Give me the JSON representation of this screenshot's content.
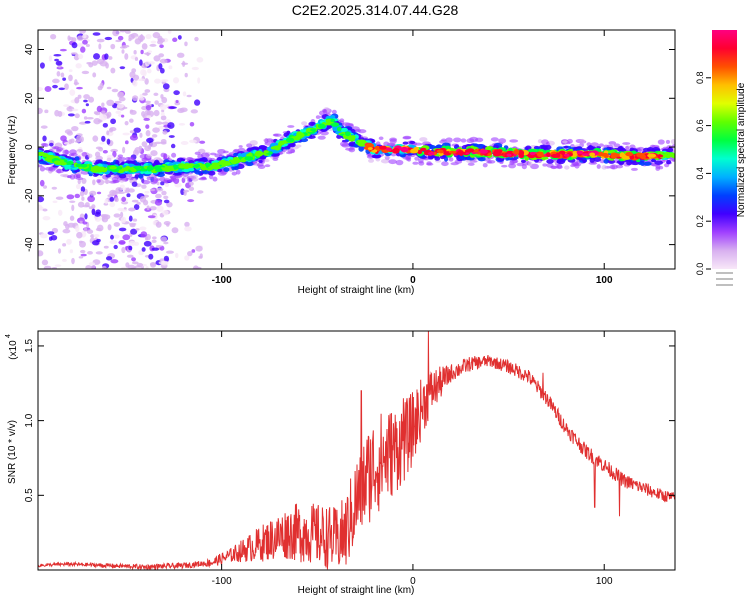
{
  "title": "C2E2.2025.314.07.44.G28",
  "chart_data": [
    {
      "type": "heatmap",
      "xlabel": "Height of straight line (km)",
      "ylabel": "Frequency (Hz)",
      "xlim": [
        -196,
        137
      ],
      "ylim": [
        -50,
        48
      ],
      "xticks": [
        -100,
        0,
        100
      ],
      "xtick_labels": [
        "-100",
        "0",
        "100"
      ],
      "yticks": [
        -40,
        -20,
        0,
        20,
        40
      ],
      "ytick_labels": [
        "-40",
        "-20",
        "0",
        "20",
        "40"
      ],
      "colorbar": {
        "label": "Normalized spectral amplitude",
        "range": [
          0,
          1
        ],
        "ticks": [
          0.0,
          0.2,
          0.4,
          0.6,
          0.8
        ],
        "tick_labels": [
          "0.0",
          "0.2",
          "0.4",
          "0.6",
          "0.8"
        ],
        "colors": [
          "#f8e8f8",
          "#d8b0f0",
          "#a040ff",
          "#4000ff",
          "#0040ff",
          "#00b0ff",
          "#00ffd0",
          "#00ff40",
          "#60ff00",
          "#e0ff00",
          "#ffc000",
          "#ff5000",
          "#ff0030",
          "#ff0080"
        ]
      },
      "ridge": {
        "x": [
          -196,
          -180,
          -165,
          -150,
          -135,
          -120,
          -105,
          -95,
          -85,
          -75,
          -65,
          -55,
          -48,
          -42,
          -38,
          -34,
          -30,
          -25,
          -20,
          -15,
          -10,
          -5,
          0,
          10,
          20,
          40,
          60,
          80,
          100,
          120,
          137
        ],
        "y": [
          -3,
          -7,
          -9,
          -9,
          -9,
          -8,
          -8,
          -6,
          -4,
          -2,
          3,
          6,
          9,
          11,
          6,
          5,
          3,
          1,
          -1,
          -1,
          -1,
          -1,
          -1,
          -2,
          -2,
          -2,
          -3,
          -3,
          -3,
          -4,
          -3
        ]
      },
      "noise_region": [
        -196,
        -110
      ]
    },
    {
      "type": "line",
      "xlabel": "Height of straight line (km)",
      "ylabel": "SNR (10 * v/v)",
      "scale_label": "(x10",
      "scale_exp": "4",
      "xlim": [
        -196,
        137
      ],
      "ylim": [
        0,
        1.6
      ],
      "xticks": [
        -100,
        0,
        100
      ],
      "xtick_labels": [
        "-100",
        "0",
        "100"
      ],
      "yticks": [
        0.5,
        1.0,
        1.5
      ],
      "ytick_labels": [
        "0.5",
        "1.0",
        "1.5"
      ],
      "color": "#e03030",
      "envelope": {
        "x": [
          -196,
          -180,
          -160,
          -140,
          -120,
          -105,
          -95,
          -85,
          -75,
          -65,
          -55,
          -45,
          -40,
          -35,
          -30,
          -25,
          -20,
          -15,
          -10,
          -5,
          0,
          5,
          10,
          20,
          30,
          40,
          50,
          60,
          70,
          80,
          90,
          100,
          110,
          120,
          130,
          137
        ],
        "y": [
          0.03,
          0.04,
          0.03,
          0.02,
          0.03,
          0.05,
          0.1,
          0.15,
          0.2,
          0.25,
          0.25,
          0.22,
          0.2,
          0.25,
          0.45,
          0.6,
          0.7,
          0.75,
          0.8,
          0.85,
          0.95,
          1.1,
          1.2,
          1.32,
          1.38,
          1.4,
          1.36,
          1.3,
          1.15,
          0.95,
          0.8,
          0.7,
          0.6,
          0.55,
          0.5,
          0.48
        ]
      },
      "spread": {
        "x": [
          -196,
          -110,
          -95,
          -80,
          -60,
          -40,
          -30,
          -20,
          -10,
          0,
          10,
          20,
          40,
          60,
          80,
          100,
          137
        ],
        "y": [
          0.01,
          0.02,
          0.05,
          0.12,
          0.2,
          0.22,
          0.3,
          0.35,
          0.3,
          0.25,
          0.15,
          0.06,
          0.04,
          0.05,
          0.05,
          0.05,
          0.04
        ]
      },
      "spikes": [
        {
          "x": 8,
          "y": 1.6
        },
        {
          "x": -27,
          "y": 1.2
        },
        {
          "x": -5,
          "y": 1.15
        },
        {
          "x": 68,
          "y": 1.32
        },
        {
          "x": 108,
          "y": 0.36
        },
        {
          "x": 95,
          "y": 0.42
        }
      ]
    }
  ]
}
